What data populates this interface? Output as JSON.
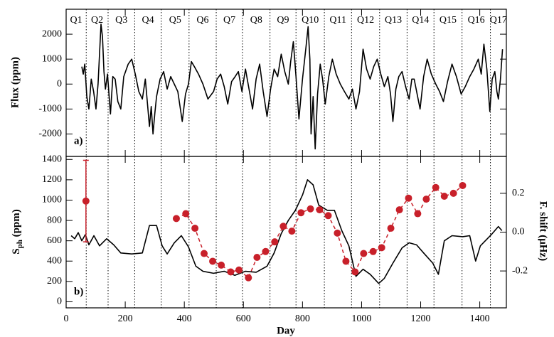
{
  "chart_data": [
    {
      "type": "line",
      "annotation": "a)",
      "ylabel": "Flux (ppm)",
      "xlim": [
        0,
        1490
      ],
      "ylim": [
        -2900,
        3000
      ],
      "yticks": [
        -2000,
        -1000,
        0,
        1000,
        2000
      ],
      "quarters": [
        "Q1",
        "Q2",
        "Q3",
        "Q4",
        "Q5",
        "Q6",
        "Q7",
        "Q8",
        "Q9",
        "Q10",
        "Q11",
        "Q12",
        "Q13",
        "Q14",
        "Q15",
        "Q16",
        "Q17"
      ],
      "quarter_boundaries": [
        68,
        142,
        232,
        322,
        416,
        508,
        597,
        690,
        778,
        874,
        966,
        1061,
        1154,
        1245,
        1340,
        1436
      ],
      "series": [
        {
          "color": "#000000",
          "x": [
            53,
            58,
            63,
            70,
            77,
            85,
            93,
            101,
            108,
            113,
            118,
            123,
            128,
            133,
            140,
            150,
            158,
            166,
            175,
            185,
            195,
            210,
            222,
            234,
            246,
            258,
            268,
            282,
            288,
            294,
            300,
            306,
            318,
            330,
            342,
            354,
            366,
            378,
            393,
            404,
            414,
            424,
            434,
            448,
            463,
            480,
            499,
            511,
            523,
            535,
            547,
            560,
            572,
            583,
            595,
            607,
            619,
            631,
            643,
            655,
            667,
            680,
            692,
            704,
            716,
            728,
            740,
            752,
            760,
            769,
            778,
            788,
            800,
            812,
            819,
            825,
            829,
            836,
            843,
            851,
            860,
            868,
            877,
            889,
            901,
            914,
            928,
            942,
            957,
            969,
            981,
            993,
            1005,
            1017,
            1029,
            1041,
            1053,
            1065,
            1077,
            1089,
            1098,
            1106,
            1116,
            1126,
            1137,
            1149,
            1161,
            1170,
            1178,
            1188,
            1198,
            1210,
            1222,
            1236,
            1251,
            1264,
            1277,
            1291,
            1306,
            1321,
            1337,
            1351,
            1366,
            1380,
            1395,
            1405,
            1414,
            1424,
            1434,
            1442,
            1451,
            1458,
            1463,
            1470,
            1477
          ],
          "values": [
            700,
            400,
            800,
            -500,
            -1000,
            200,
            -300,
            -1000,
            0,
            1200,
            2400,
            1900,
            500,
            -200,
            400,
            -1200,
            300,
            200,
            -700,
            -1000,
            300,
            800,
            1000,
            400,
            -300,
            -600,
            200,
            -1700,
            -900,
            -2000,
            -1200,
            -500,
            200,
            500,
            -200,
            300,
            0,
            -300,
            -1500,
            -400,
            0,
            900,
            700,
            400,
            0,
            -600,
            -300,
            200,
            400,
            -100,
            -800,
            100,
            300,
            500,
            -300,
            600,
            -200,
            -1000,
            200,
            800,
            -300,
            -1300,
            -200,
            600,
            300,
            1200,
            500,
            0,
            900,
            1700,
            300,
            -1400,
            200,
            1500,
            2300,
            1000,
            -2000,
            -500,
            -2600,
            -400,
            800,
            200,
            -800,
            300,
            1000,
            400,
            0,
            -300,
            -600,
            -200,
            -1000,
            -300,
            1400,
            600,
            200,
            700,
            1000,
            400,
            -100,
            300,
            -400,
            -1500,
            -200,
            300,
            500,
            -100,
            -600,
            200,
            200,
            -400,
            -1000,
            300,
            1000,
            400,
            0,
            -300,
            -700,
            100,
            800,
            300,
            -400,
            -100,
            300,
            600,
            1000,
            400,
            1600,
            600,
            -1100,
            200,
            500,
            -300,
            -600,
            200,
            1400
          ]
        }
      ]
    },
    {
      "type": "line",
      "annotation": "b)",
      "xlabel": "Day",
      "ylabel": {
        "main": "S",
        "sub": "ph",
        "rest": " (ppm)"
      },
      "y2label": "F. shift (μHz)",
      "xlim": [
        0,
        1490
      ],
      "xticks": [
        0,
        200,
        400,
        600,
        800,
        1000,
        1200,
        1400
      ],
      "ylim": [
        -60,
        1430
      ],
      "yticks": [
        0,
        200,
        400,
        600,
        800,
        1000,
        1200,
        1400
      ],
      "y2lim": [
        -0.39,
        0.39
      ],
      "y2ticks": [
        -0.2,
        {
          "value": 0,
          "label": "0.0"
        },
        0.2
      ],
      "series": [
        {
          "color": "#000000",
          "x": [
            17,
            29,
            41,
            53,
            65,
            77,
            94,
            113,
            137,
            161,
            185,
            222,
            258,
            282,
            306,
            325,
            342,
            366,
            390,
            414,
            439,
            463,
            499,
            535,
            571,
            607,
            643,
            680,
            704,
            728,
            752,
            776,
            800,
            817,
            836,
            855,
            884,
            908,
            933,
            957,
            981,
            1005,
            1029,
            1058,
            1077,
            1106,
            1137,
            1161,
            1186,
            1210,
            1241,
            1260,
            1280,
            1306,
            1342,
            1366,
            1386,
            1402,
            1439,
            1463,
            1475
          ],
          "values": [
            650,
            620,
            680,
            600,
            660,
            560,
            650,
            550,
            620,
            560,
            480,
            470,
            480,
            750,
            750,
            550,
            470,
            580,
            650,
            540,
            350,
            300,
            280,
            300,
            260,
            300,
            290,
            350,
            480,
            670,
            800,
            900,
            1050,
            1200,
            1150,
            950,
            900,
            900,
            700,
            550,
            250,
            320,
            270,
            180,
            230,
            380,
            530,
            580,
            560,
            480,
            380,
            270,
            600,
            650,
            640,
            650,
            400,
            550,
            660,
            740,
            700
          ]
        },
        {
          "color": "#c8202a",
          "axis": "y2",
          "marker": "circle",
          "dash": true,
          "x": [
            67,
            null,
            373,
            405,
            436,
            467,
            496,
            525,
            557,
            585,
            617,
            646,
            675,
            706,
            735,
            764,
            795,
            827,
            858,
            887,
            918,
            947,
            978,
            1007,
            1039,
            1068,
            1099,
            1128,
            1159,
            1190,
            1219,
            1251,
            1280,
            1311,
            1342
          ],
          "values": [
            0.16,
            null,
            0.07,
            0.095,
            0.02,
            -0.11,
            -0.15,
            -0.17,
            -0.205,
            -0.195,
            -0.235,
            -0.13,
            -0.1,
            -0.05,
            0.03,
            0.005,
            0.1,
            0.12,
            0.115,
            0.085,
            -0.005,
            -0.15,
            -0.205,
            -0.11,
            -0.1,
            -0.08,
            0.02,
            0.115,
            0.175,
            0.095,
            0.17,
            0.23,
            0.185,
            0.2,
            0.24
          ],
          "errors": [
            0.21,
            null,
            null,
            null,
            null,
            null,
            null,
            null,
            null,
            null,
            null,
            null,
            null,
            null,
            null,
            null,
            null,
            null,
            null,
            null,
            null,
            null,
            null,
            null,
            null,
            null,
            null,
            null,
            null,
            null,
            null,
            null,
            null,
            null,
            null
          ]
        }
      ]
    }
  ]
}
